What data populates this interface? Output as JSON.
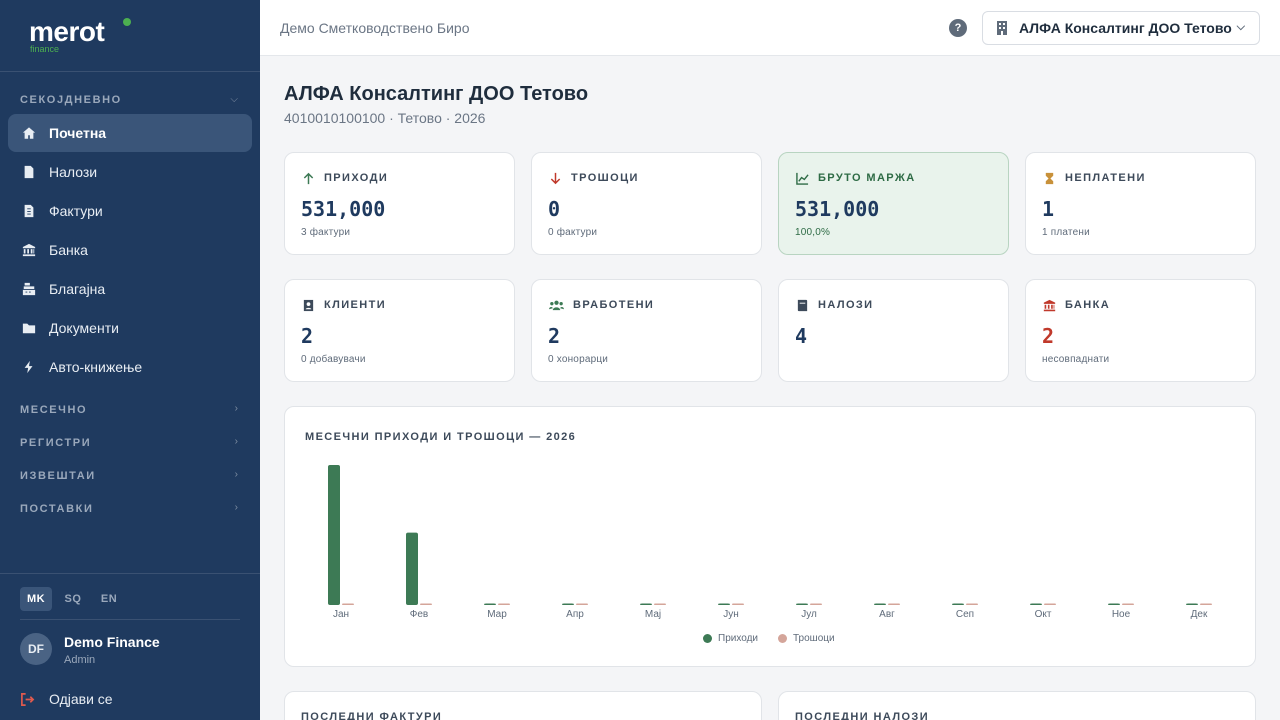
{
  "brand": {
    "logo": "merot",
    "sub": "finance"
  },
  "sidebar": {
    "section_daily": "СЕКОЈДНЕВНО",
    "items": [
      {
        "label": "Почетна",
        "icon": "home-icon",
        "active": true
      },
      {
        "label": "Налози",
        "icon": "document-icon"
      },
      {
        "label": "Фактури",
        "icon": "invoice-icon"
      },
      {
        "label": "Банка",
        "icon": "bank-icon"
      },
      {
        "label": "Благајна",
        "icon": "cash-register-icon"
      },
      {
        "label": "Документи",
        "icon": "folder-icon"
      },
      {
        "label": "Авто-книжење",
        "icon": "bolt-icon"
      }
    ],
    "sections": [
      "МЕСЕЧНО",
      "РЕГИСТРИ",
      "ИЗВЕШТАИ",
      "ПОСТАВКИ"
    ],
    "languages": [
      "MK",
      "SQ",
      "EN"
    ],
    "active_language": "MK",
    "user": {
      "initials": "DF",
      "name": "Demo Finance",
      "role": "Admin"
    },
    "logout": "Одјави се"
  },
  "topbar": {
    "office": "Демо Сметководствено Биро",
    "company": "АЛФА Консалтинг ДОО Тетово"
  },
  "page": {
    "title": "АЛФА Консалтинг ДОО Тетово",
    "subtitle": "4010010100100 · Тетово · 2026"
  },
  "cards": [
    {
      "label": "ПРИХОДИ",
      "value": "531,000",
      "sub": "3 фактури",
      "icon": "arrow-up-icon"
    },
    {
      "label": "ТРОШОЦИ",
      "value": "0",
      "sub": "0 фактури",
      "icon": "arrow-down-icon"
    },
    {
      "label": "БРУТО МАРЖА",
      "value": "531,000",
      "sub": "100,0%",
      "icon": "chart-line-icon"
    },
    {
      "label": "НЕПЛАТЕНИ",
      "value": "1",
      "sub": "1 платени",
      "icon": "hourglass-icon"
    },
    {
      "label": "КЛИЕНТИ",
      "value": "2",
      "sub": "0 добавувачи",
      "icon": "contacts-icon"
    },
    {
      "label": "ВРАБОТЕНИ",
      "value": "2",
      "sub": "0 хонорарци",
      "icon": "users-icon"
    },
    {
      "label": "НАЛОЗИ",
      "value": "4",
      "sub": "",
      "icon": "book-icon"
    },
    {
      "label": "БАНКА",
      "value": "2",
      "sub": "несовпаднати",
      "icon": "bank-icon"
    }
  ],
  "colors": {
    "revenue": "#3d7a55",
    "expense": "#d4a59a",
    "warning_value": "#c0392b",
    "sidebar_bg": "#1f3a5f"
  },
  "chart_data": {
    "type": "bar",
    "title": "МЕСЕЧНИ ПРИХОДИ И ТРОШОЦИ — 2026",
    "categories": [
      "Јан",
      "Фев",
      "Мар",
      "Апр",
      "Мај",
      "Јун",
      "Јул",
      "Авг",
      "Сеп",
      "Окт",
      "Ное",
      "Дек"
    ],
    "series": [
      {
        "name": "Приходи",
        "values": [
          350000,
          181000,
          0,
          0,
          0,
          0,
          0,
          0,
          0,
          0,
          0,
          0
        ]
      },
      {
        "name": "Трошоци",
        "values": [
          0,
          0,
          0,
          0,
          0,
          0,
          0,
          0,
          0,
          0,
          0,
          0
        ]
      }
    ],
    "ylim": [
      0,
      350000
    ],
    "grid": false,
    "legend": "bottom-center"
  },
  "bottom": {
    "invoices_title": "ПОСЛЕДНИ ФАКТУРИ",
    "entries_title": "ПОСЛЕДНИ НАЛОЗИ"
  }
}
